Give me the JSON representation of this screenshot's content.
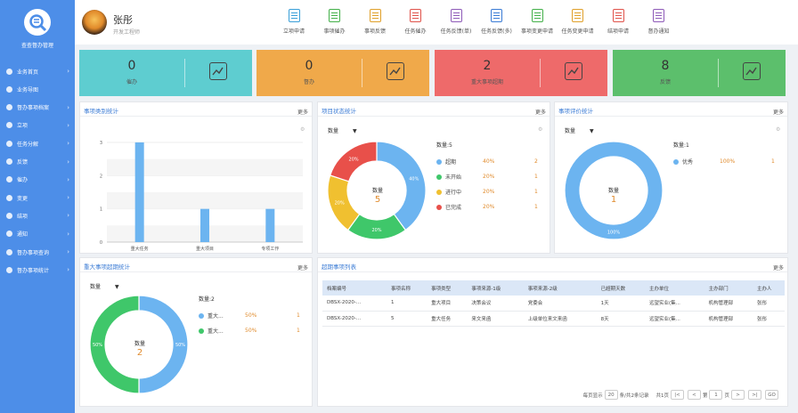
{
  "app": {
    "logo_text": "查查督办管理"
  },
  "sidebar": {
    "items": [
      {
        "label": "业务首页",
        "chevron": true
      },
      {
        "label": "业务导图",
        "chevron": false
      },
      {
        "label": "督办事项档案",
        "chevron": true
      },
      {
        "label": "立项",
        "chevron": true
      },
      {
        "label": "任务分解",
        "chevron": true
      },
      {
        "label": "反馈",
        "chevron": true
      },
      {
        "label": "催办",
        "chevron": true
      },
      {
        "label": "变更",
        "chevron": true
      },
      {
        "label": "结项",
        "chevron": true
      },
      {
        "label": "通知",
        "chevron": true
      },
      {
        "label": "督办事项查询",
        "chevron": true
      },
      {
        "label": "督办事项统计",
        "chevron": true
      }
    ]
  },
  "user": {
    "name": "张彤",
    "role": "开发工程师"
  },
  "quicklinks": [
    {
      "label": "立项申请",
      "icon": "form-icon",
      "color": "#3a9fd8"
    },
    {
      "label": "事项催办",
      "icon": "mail-icon",
      "color": "#43b049"
    },
    {
      "label": "事项反馈",
      "icon": "feedback-icon",
      "color": "#e0a02a"
    },
    {
      "label": "任务催办",
      "icon": "mail-icon",
      "color": "#e0524a"
    },
    {
      "label": "任务反馈(单)",
      "icon": "feedback-icon",
      "color": "#8e5ab8"
    },
    {
      "label": "任务反馈(多)",
      "icon": "feedback-icon",
      "color": "#3a7bd5"
    },
    {
      "label": "事项变更申请",
      "icon": "change-icon",
      "color": "#43b049"
    },
    {
      "label": "任务变更申请",
      "icon": "change-icon",
      "color": "#e0a02a"
    },
    {
      "label": "结项申请",
      "icon": "close-project-icon",
      "color": "#e0524a"
    },
    {
      "label": "督办通知",
      "icon": "notice-icon",
      "color": "#8e5ab8"
    }
  ],
  "stats": [
    {
      "value": "0",
      "label": "催办",
      "color": "#5ecdd0",
      "icon": "chart-icon"
    },
    {
      "value": "0",
      "label": "督办",
      "color": "#f0a94a",
      "icon": "users-icon"
    },
    {
      "value": "2",
      "label": "重大事项超期",
      "color": "#ee6a6a",
      "icon": "chart-icon"
    },
    {
      "value": "8",
      "label": "反馈",
      "color": "#5cbf6c",
      "icon": "chart-icon"
    }
  ],
  "panels": {
    "type_stats": {
      "title": "事项类别统计",
      "more": "更多"
    },
    "status_stats": {
      "title": "项目状态统计",
      "more": "更多",
      "dropdown": "数量"
    },
    "eval_stats": {
      "title": "事项评价统计",
      "more": "更多",
      "dropdown": "数量"
    },
    "overdue_stats": {
      "title": "重大事项超期统计",
      "more": "更多",
      "dropdown": "数量"
    },
    "overdue_list": {
      "title": "超期事项列表",
      "more": "更多"
    }
  },
  "status_center": {
    "label": "数量",
    "value": "5"
  },
  "eval_center": {
    "label": "数量",
    "value": "1"
  },
  "overdue_center": {
    "label": "数量",
    "value": "2"
  },
  "status_legend": {
    "title": "数量:5",
    "items": [
      {
        "name": "超期",
        "pct": "40%",
        "count": "2",
        "color": "#6cb4f0"
      },
      {
        "name": "未开始",
        "pct": "20%",
        "count": "1",
        "color": "#3fc76a"
      },
      {
        "name": "进行中",
        "pct": "20%",
        "count": "1",
        "color": "#f0c030"
      },
      {
        "name": "已完成",
        "pct": "20%",
        "count": "1",
        "color": "#e8504a"
      }
    ]
  },
  "eval_legend": {
    "title": "数量:1",
    "items": [
      {
        "name": "优秀",
        "pct": "100%",
        "count": "1",
        "color": "#6cb4f0"
      }
    ]
  },
  "overdue_legend": {
    "title": "数量:2",
    "items": [
      {
        "name": "重大...",
        "pct": "50%",
        "count": "1",
        "color": "#6cb4f0"
      },
      {
        "name": "重大...",
        "pct": "50%",
        "count": "1",
        "color": "#3fc76a"
      }
    ]
  },
  "chart_data": [
    {
      "type": "bar",
      "categories": [
        "重大任务",
        "重大项目",
        "专项工作"
      ],
      "values": [
        3,
        1,
        1
      ],
      "ylim": [
        0,
        3
      ],
      "yticks": [
        "0",
        "1",
        "2",
        "3"
      ],
      "color": "#6cb4f0"
    },
    {
      "type": "pie",
      "categories": [
        "超期",
        "未开始",
        "进行中",
        "已完成"
      ],
      "values": [
        40,
        20,
        20,
        20
      ],
      "labels": [
        "40%",
        "20%",
        "20%",
        "20%"
      ],
      "colors": [
        "#6cb4f0",
        "#3fc76a",
        "#f0c030",
        "#e8504a"
      ]
    },
    {
      "type": "pie",
      "categories": [
        "优秀"
      ],
      "values": [
        100
      ],
      "labels": [
        "100%"
      ],
      "colors": [
        "#6cb4f0"
      ]
    },
    {
      "type": "pie",
      "categories": [
        "重大...",
        "重大..."
      ],
      "values": [
        50,
        50
      ],
      "labels": [
        "50%",
        "50%"
      ],
      "colors": [
        "#6cb4f0",
        "#3fc76a"
      ]
    }
  ],
  "table": {
    "headers": [
      "档案编号",
      "事项名称",
      "事项类型",
      "事项来源-1级",
      "事项来源-2级",
      "已超期天数",
      "主办单位",
      "主办部门",
      "主办人"
    ],
    "rows": [
      [
        "DBSX-2020-...",
        "1",
        "重大项目",
        "决策会议",
        "党委会",
        "1天",
        "远望实业(集...",
        "机构管理部",
        "张彤"
      ],
      [
        "DBSX-2020-...",
        "5",
        "重大任务",
        "来文来函",
        "上级单位来文来函",
        "8天",
        "远望实业(集...",
        "机构管理部",
        "张彤"
      ]
    ]
  },
  "pager": {
    "per_page_label": "每页显示",
    "per_page": "20",
    "records": "条/共2条记录",
    "total_pages": "共1页",
    "first": "|<",
    "prev": "<",
    "page_prefix": "第",
    "page": "1",
    "page_suffix": "页",
    "next": ">",
    "last": ">|",
    "go": "GO"
  }
}
